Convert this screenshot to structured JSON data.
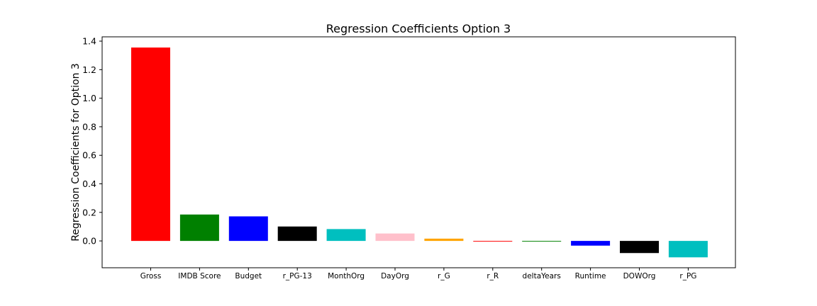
{
  "chart_data": {
    "type": "bar",
    "title": "Regression Coefficients Option 3",
    "xlabel": "",
    "ylabel": "Regression Coefficients for Option 3",
    "categories": [
      "Gross",
      "IMDB Score",
      "Budget",
      "r_PG-13",
      "MonthOrg",
      "DayOrg",
      "r_G",
      "r_R",
      "deltaYears",
      "Runtime",
      "DOWOrg",
      "r_PG"
    ],
    "values": [
      1.355,
      0.185,
      0.172,
      0.101,
      0.083,
      0.052,
      0.016,
      -0.003,
      -0.003,
      -0.033,
      -0.085,
      -0.115
    ],
    "colors": [
      "#ff0000",
      "#008000",
      "#0000ff",
      "#000000",
      "#00bfbf",
      "#ffc0cb",
      "#ffa500",
      "#ff0000",
      "#008000",
      "#0000ff",
      "#000000",
      "#00bfbf"
    ],
    "yticks": [
      "0.0",
      "0.2",
      "0.4",
      "0.6",
      "0.8",
      "1.0",
      "1.2",
      "1.4"
    ],
    "ylim": [
      -0.188,
      1.43
    ],
    "grid": false,
    "legend": "none"
  }
}
